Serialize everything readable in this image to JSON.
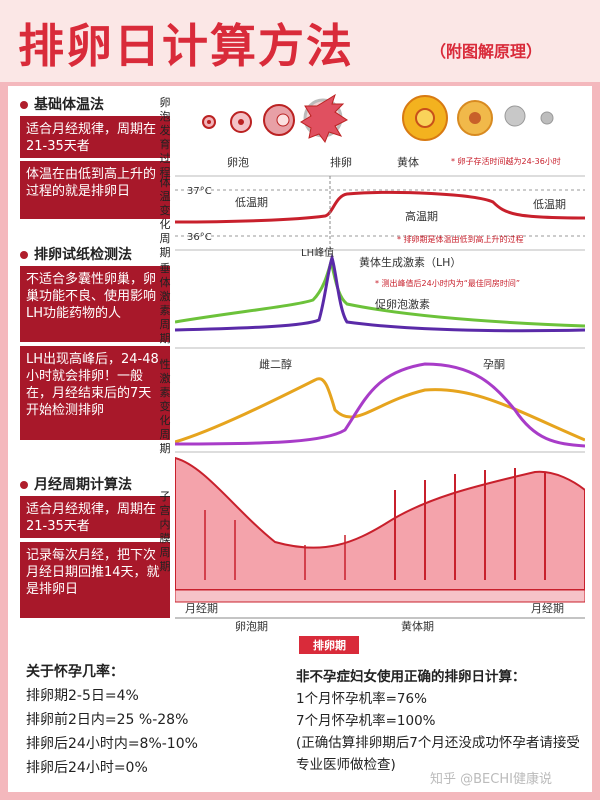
{
  "title": "排卵日计算方法",
  "subtitle": "（附图解原理）",
  "sections": [
    {
      "heading": "基础体温法",
      "boxes": [
        "适合月经规律，周期在21-35天者",
        "体温在由低到高上升的过程的就是排卵日"
      ]
    },
    {
      "heading": "排卵试纸检测法",
      "boxes": [
        "不适合多囊性卵巢，卵巢功能不良、使用影响LH功能药物的人",
        "LH出现高峰后，24-48小时就会排卵！一般在，月经结束后的7天开始检测排卵"
      ]
    },
    {
      "heading": "月经周期计算法",
      "boxes": [
        "适合月经规律，周期在21-35天者",
        "记录每次月经，把下次月经日期回推14天，就是排卵日"
      ]
    }
  ],
  "rows": {
    "follicle": {
      "label": "卵泡发育过程",
      "stage1": "卵泡",
      "stage2": "排卵",
      "stage3": "黄体",
      "note": "* 卵子存活时间越为24-36小时"
    },
    "temp": {
      "label": "体温变化周期",
      "t37": "37°C",
      "t36": "36°C",
      "low1": "低温期",
      "high": "高温期",
      "low2": "低温期",
      "note": "* 排卵期是体温由低到高上升的过程"
    },
    "pituitary": {
      "label": "垂体激素周期",
      "lh_peak": "LH峰值",
      "lh": "黄体生成激素（LH）",
      "note": "* 测出峰值后24小时内为“最佳同房时间”",
      "fsh": "促卵泡激素"
    },
    "sex_hormone": {
      "label": "性激素变化周期",
      "estradiol": "雌二醇",
      "progesterone": "孕酮"
    },
    "uterus": {
      "label": "子宫内膜周期",
      "period1": "月经期",
      "follicular": "卵泡期",
      "luteal": "黄体期",
      "period2": "月经期",
      "ovulation": "排卵期"
    }
  },
  "bottom_left": {
    "title": "关于怀孕几率：",
    "lines": [
      "排卵期2-5日=4%",
      "排卵前2日内=25 %-28%",
      "排卵后24小时内=8%-10%",
      "排卵后24小时=0%"
    ]
  },
  "bottom_right": {
    "title": "非不孕症妇女使用正确的排卵日计算：",
    "lines": [
      "1个月怀孕机率=76%",
      "7个月怀孕机率=100%",
      "(正确估算排卵期后7个月还没成功怀孕者请接受专业医师做检查)"
    ]
  },
  "watermark": "知乎 @BECHI健康说",
  "colors": {
    "brand_red": "#d92b3a",
    "box_red": "#a8182a",
    "lh": "#5a2aa8",
    "fsh": "#6cc23a",
    "estradiol": "#e6a41e",
    "progesterone": "#a83cc8",
    "temp": "#c8202c"
  }
}
